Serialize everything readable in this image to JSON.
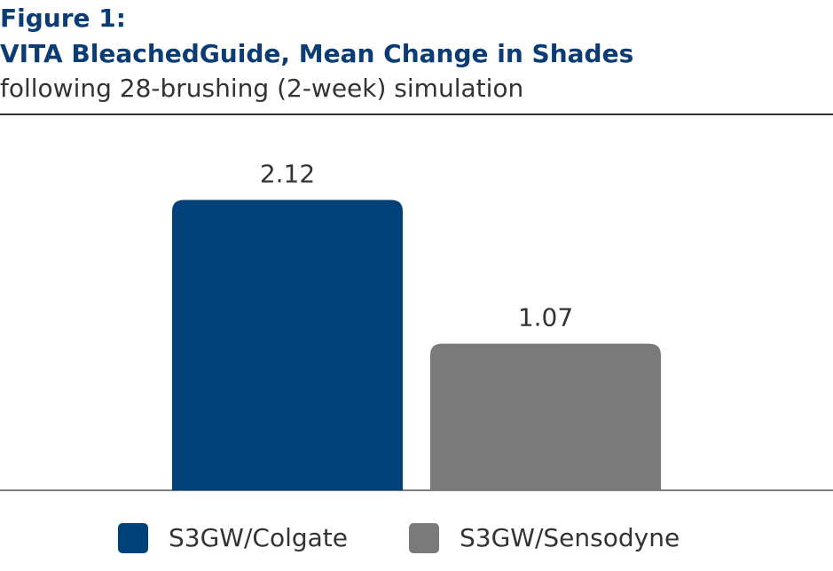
{
  "chart_data": {
    "type": "bar",
    "label": "Figure 1:",
    "title": "VITA BleachedGuide, Mean Change in Shades",
    "subtitle": "following 28-brushing (2-week) simulation",
    "categories": [
      null
    ],
    "series": [
      {
        "name": "S3GW/Colgate",
        "color": "#00417a",
        "values": [
          2.12
        ]
      },
      {
        "name": "S3GW/Sensodyne",
        "color": "#7a7a7a",
        "values": [
          1.07
        ]
      }
    ],
    "data_labels": true,
    "legend": "bottom"
  }
}
